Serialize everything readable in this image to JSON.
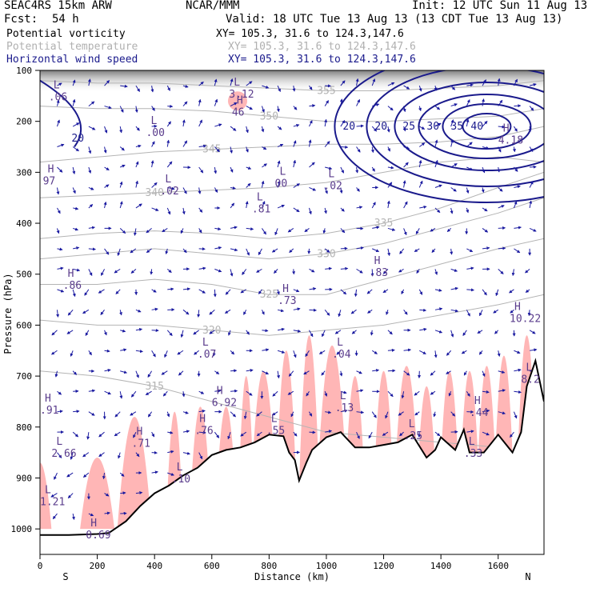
{
  "header": {
    "model": "SEAC4RS 15km ARW",
    "org": "NCAR/MMM",
    "init": "Init: 12 UTC Sun 11 Aug 13",
    "fcst_label": "Fcst:",
    "fcst_value": "54 h",
    "valid": "Valid: 18 UTC Tue 13 Aug 13 (13 CDT Tue 13 Aug 13)",
    "fields": [
      {
        "name": "Potential vorticity",
        "xy": "XY= 105.3, 31.6 to 124.3,147.6"
      },
      {
        "name": "Potential temperature",
        "xy": "XY= 105.3, 31.6 to 124.3,147.6"
      },
      {
        "name": "Horizontal wind speed",
        "xy": "XY= 105.3, 31.6 to 124.3,147.6"
      }
    ]
  },
  "colors": {
    "pv": "#ffb6b6",
    "theta": "#b4b4b4",
    "wind": "#1a1a8c",
    "vectors": "#1a1aa0",
    "terrain": "#000000"
  },
  "chart_data": {
    "type": "cross-section",
    "xlabel": "Distance (km)",
    "ylabel": "Pressure (hPa)",
    "xlim": [
      0,
      1760
    ],
    "ylim": [
      1050,
      100
    ],
    "x_ticks": [
      "0",
      "200",
      "400",
      "600",
      "800",
      "1000",
      "1200",
      "1400",
      "1600"
    ],
    "y_ticks": [
      "100",
      "200",
      "300",
      "400",
      "500",
      "600",
      "700",
      "800",
      "900",
      "1000"
    ],
    "direction_left": "S",
    "direction_right": "N",
    "terrain": {
      "x": [
        0,
        100,
        200,
        240,
        300,
        350,
        400,
        450,
        500,
        550,
        600,
        650,
        700,
        750,
        800,
        850,
        870,
        890,
        905,
        930,
        950,
        1000,
        1050,
        1100,
        1150,
        1200,
        1250,
        1300,
        1350,
        1380,
        1400,
        1450,
        1480,
        1500,
        1550,
        1600,
        1650,
        1680,
        1700,
        1730,
        1760
      ],
      "p": [
        1012,
        1012,
        1010,
        1008,
        985,
        955,
        930,
        915,
        895,
        880,
        855,
        845,
        840,
        830,
        815,
        818,
        850,
        865,
        905,
        870,
        845,
        820,
        810,
        840,
        840,
        835,
        830,
        815,
        860,
        845,
        820,
        845,
        805,
        850,
        850,
        815,
        850,
        810,
        720,
        670,
        750
      ]
    },
    "theta_contours": [
      {
        "label": "315",
        "p": [
          690,
          700,
          720,
          750,
          780,
          810,
          820,
          830,
          840,
          880
        ]
      },
      {
        "label": "320",
        "p": [
          590,
          600,
          600,
          610,
          620,
          610,
          600,
          580,
          560,
          540
        ]
      },
      {
        "label": "325",
        "p": [
          520,
          520,
          510,
          520,
          540,
          540,
          510,
          480,
          450,
          430
        ]
      },
      {
        "label": "330",
        "p": [
          470,
          460,
          450,
          460,
          470,
          460,
          440,
          410,
          380,
          350
        ]
      },
      {
        "label": "335",
        "p": [
          430,
          420,
          415,
          420,
          430,
          420,
          400,
          370,
          330,
          300
        ]
      },
      {
        "label": "340",
        "p": [
          350,
          345,
          340,
          335,
          330,
          320,
          300,
          280,
          270,
          280
        ]
      },
      {
        "label": "345",
        "p": [
          280,
          270,
          260,
          255,
          250,
          245,
          245,
          240,
          230,
          210
        ]
      },
      {
        "label": "350",
        "p": [
          170,
          175,
          175,
          180,
          190,
          200,
          200,
          195,
          190,
          175
        ]
      },
      {
        "label": "355",
        "p": [
          120,
          125,
          125,
          130,
          135,
          140,
          140,
          135,
          130,
          120
        ]
      }
    ],
    "wind_contours": [
      "20",
      "20",
      "25",
      "30",
      "35",
      "40"
    ],
    "labels": [
      {
        "t": "L",
        "v": ".06",
        "x": 30,
        "p": 135
      },
      {
        "t": "L",
        "v": ".00",
        "x": 370,
        "p": 205
      },
      {
        "t": "L",
        "v": "3.12",
        "x": 660,
        "p": 130
      },
      {
        "t": "H",
        "v": "46",
        "x": 670,
        "p": 165
      },
      {
        "t": "H",
        "v": "97",
        "x": 10,
        "p": 300
      },
      {
        "t": "L",
        "v": ".02",
        "x": 420,
        "p": 320
      },
      {
        "t": "L",
        "v": "00",
        "x": 820,
        "p": 305
      },
      {
        "t": "L",
        "v": ".02",
        "x": 990,
        "p": 310
      },
      {
        "t": "L",
        "v": ".81",
        "x": 740,
        "p": 355
      },
      {
        "t": "H",
        "v": "4.18",
        "x": 1600,
        "p": 220
      },
      {
        "t": "H",
        "v": ".83",
        "x": 1150,
        "p": 480
      },
      {
        "t": "H",
        "v": ".86",
        "x": 80,
        "p": 505
      },
      {
        "t": "H",
        "v": ".73",
        "x": 830,
        "p": 535
      },
      {
        "t": "H",
        "v": "10.22",
        "x": 1640,
        "p": 570
      },
      {
        "t": "L",
        "v": ".07",
        "x": 550,
        "p": 640
      },
      {
        "t": "L",
        "v": ".04",
        "x": 1020,
        "p": 640
      },
      {
        "t": "H",
        "v": "6.92",
        "x": 600,
        "p": 735
      },
      {
        "t": "H",
        "v": ".91",
        "x": 0,
        "p": 750
      },
      {
        "t": "L",
        "v": ".13",
        "x": 1030,
        "p": 745
      },
      {
        "t": "H",
        "v": ".44",
        "x": 1500,
        "p": 755
      },
      {
        "t": "H",
        "v": ".76",
        "x": 540,
        "p": 790
      },
      {
        "t": "L",
        "v": ".55",
        "x": 790,
        "p": 790
      },
      {
        "t": "L",
        "v": ".25",
        "x": 1270,
        "p": 800
      },
      {
        "t": "H",
        "v": ".71",
        "x": 320,
        "p": 815
      },
      {
        "t": "L",
        "v": "2.66",
        "x": 40,
        "p": 835
      },
      {
        "t": "L",
        "v": ".33",
        "x": 1480,
        "p": 835
      },
      {
        "t": "L",
        "v": ".10",
        "x": 460,
        "p": 885
      },
      {
        "t": "L",
        "v": "1.21",
        "x": 0,
        "p": 930
      },
      {
        "t": "H",
        "v": "0.69",
        "x": 160,
        "p": 995
      },
      {
        "t": "L",
        "v": "8.2",
        "x": 1680,
        "p": 690
      }
    ]
  }
}
